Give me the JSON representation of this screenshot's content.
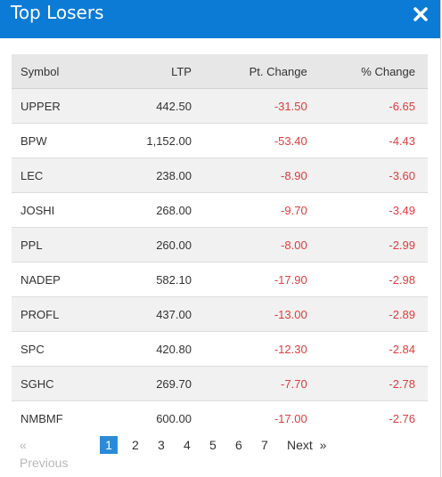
{
  "modal": {
    "title": "Top Losers",
    "close_glyph": "✖"
  },
  "table": {
    "headers": [
      "Symbol",
      "LTP",
      "Pt. Change",
      "% Change"
    ],
    "rows": [
      [
        "UPPER",
        "442.50",
        "-31.50",
        "-6.65"
      ],
      [
        "BPW",
        "1,152.00",
        "-53.40",
        "-4.43"
      ],
      [
        "LEC",
        "238.00",
        "-8.90",
        "-3.60"
      ],
      [
        "JOSHI",
        "268.00",
        "-9.70",
        "-3.49"
      ],
      [
        "PPL",
        "260.00",
        "-8.00",
        "-2.99"
      ],
      [
        "NADEP",
        "582.10",
        "-17.90",
        "-2.98"
      ],
      [
        "PROFL",
        "437.00",
        "-13.00",
        "-2.89"
      ],
      [
        "SPC",
        "420.80",
        "-12.30",
        "-2.84"
      ],
      [
        "SGHC",
        "269.70",
        "-7.70",
        "-2.78"
      ],
      [
        "NMBMF",
        "600.00",
        "-17.00",
        "-2.76"
      ]
    ]
  },
  "pagination": {
    "prev_label": "«  Previous",
    "pages": [
      "1",
      "2",
      "3",
      "4",
      "5",
      "6",
      "7"
    ],
    "active_page": "1",
    "next_label": "Next  »"
  },
  "colors": {
    "header_bg": "#0b7bd6",
    "negative": "#e03c3c",
    "active_page": "#2b8bd8"
  }
}
